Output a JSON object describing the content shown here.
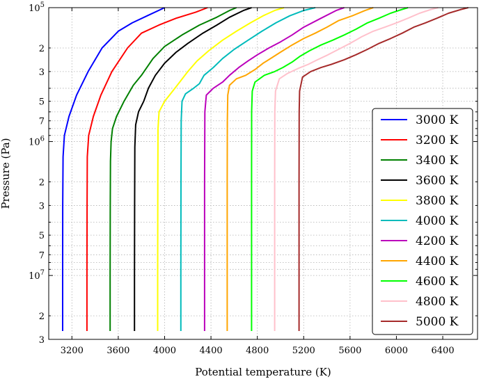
{
  "chart_data": {
    "type": "line",
    "xlabel": "Potential temperature (K)",
    "ylabel": "Pressure (Pa)",
    "xlim": [
      3000,
      6700
    ],
    "ylim": [
      30000000,
      100000
    ],
    "y_scale": "log",
    "y_inverted": true,
    "grid": true,
    "legend_position": "lower-right",
    "x_ticks": [
      3200,
      3600,
      4000,
      4400,
      4800,
      5200,
      5600,
      6000,
      6400
    ],
    "x_tick_labels": [
      "3200",
      "3600",
      "4000",
      "4400",
      "4800",
      "5200",
      "5600",
      "6000",
      "6400"
    ],
    "y_major_ticks": [
      {
        "value": 100000,
        "base": "10",
        "exp": "5"
      },
      {
        "value": 1000000,
        "base": "10",
        "exp": "6"
      },
      {
        "value": 10000000,
        "base": "10",
        "exp": "7"
      }
    ],
    "y_minor_ticks": [
      {
        "value": 200000,
        "label": "2"
      },
      {
        "value": 300000,
        "label": "3"
      },
      {
        "value": 500000,
        "label": "5"
      },
      {
        "value": 700000,
        "label": "7"
      },
      {
        "value": 2000000,
        "label": "2"
      },
      {
        "value": 3000000,
        "label": "3"
      },
      {
        "value": 5000000,
        "label": "5"
      },
      {
        "value": 7000000,
        "label": "7"
      },
      {
        "value": 20000000,
        "label": "2"
      },
      {
        "value": 30000000,
        "label": "3"
      }
    ],
    "y_minor_unlabeled": [
      400000,
      600000,
      800000,
      900000,
      4000000,
      6000000,
      8000000,
      9000000
    ],
    "series": [
      {
        "name": "3000 K",
        "color": "#0000ff",
        "points": [
          [
            3120,
            26000000
          ],
          [
            3120,
            10000000
          ],
          [
            3121,
            3000000
          ],
          [
            3124,
            1300000
          ],
          [
            3135,
            900000
          ],
          [
            3175,
            650000
          ],
          [
            3240,
            450000
          ],
          [
            3340,
            300000
          ],
          [
            3460,
            200000
          ],
          [
            3600,
            150000
          ],
          [
            3720,
            130000
          ],
          [
            3850,
            115000
          ],
          [
            4000,
            100000
          ]
        ]
      },
      {
        "name": "3200 K",
        "color": "#ff0000",
        "points": [
          [
            3330,
            26000000
          ],
          [
            3330,
            10000000
          ],
          [
            3331,
            3000000
          ],
          [
            3333,
            1300000
          ],
          [
            3345,
            900000
          ],
          [
            3385,
            650000
          ],
          [
            3450,
            450000
          ],
          [
            3545,
            300000
          ],
          [
            3680,
            200000
          ],
          [
            3800,
            155000
          ],
          [
            3950,
            135000
          ],
          [
            4100,
            120000
          ],
          [
            4270,
            108000
          ],
          [
            4370,
            100000
          ]
        ]
      },
      {
        "name": "3400 K",
        "color": "#008000",
        "points": [
          [
            3530,
            26000000
          ],
          [
            3530,
            10000000
          ],
          [
            3531,
            3000000
          ],
          [
            3533,
            1400000
          ],
          [
            3538,
            1000000
          ],
          [
            3550,
            800000
          ],
          [
            3585,
            650000
          ],
          [
            3650,
            500000
          ],
          [
            3730,
            380000
          ],
          [
            3800,
            320000
          ],
          [
            3900,
            240000
          ],
          [
            4000,
            195000
          ],
          [
            4150,
            160000
          ],
          [
            4300,
            135000
          ],
          [
            4450,
            118000
          ],
          [
            4560,
            105000
          ],
          [
            4620,
            100000
          ]
        ]
      },
      {
        "name": "3600 K",
        "color": "#000000",
        "points": [
          [
            3740,
            26000000
          ],
          [
            3740,
            10000000
          ],
          [
            3741,
            3000000
          ],
          [
            3743,
            1100000
          ],
          [
            3750,
            750000
          ],
          [
            3775,
            600000
          ],
          [
            3820,
            500000
          ],
          [
            3860,
            400000
          ],
          [
            3920,
            320000
          ],
          [
            4000,
            260000
          ],
          [
            4100,
            215000
          ],
          [
            4200,
            185000
          ],
          [
            4330,
            155000
          ],
          [
            4450,
            135000
          ],
          [
            4560,
            118000
          ],
          [
            4680,
            105000
          ],
          [
            4750,
            100000
          ]
        ]
      },
      {
        "name": "3800 K",
        "color": "#ffff00",
        "points": [
          [
            3940,
            26000000
          ],
          [
            3940,
            10000000
          ],
          [
            3941,
            2000000
          ],
          [
            3943,
            800000
          ],
          [
            3952,
            600000
          ],
          [
            4000,
            500000
          ],
          [
            4060,
            430000
          ],
          [
            4130,
            360000
          ],
          [
            4200,
            300000
          ],
          [
            4280,
            250000
          ],
          [
            4380,
            210000
          ],
          [
            4500,
            175000
          ],
          [
            4620,
            150000
          ],
          [
            4740,
            130000
          ],
          [
            4850,
            115000
          ],
          [
            4950,
            105000
          ],
          [
            5030,
            100000
          ]
        ]
      },
      {
        "name": "4000 K",
        "color": "#00bbbb",
        "points": [
          [
            4140,
            26000000
          ],
          [
            4140,
            10000000
          ],
          [
            4141,
            2000000
          ],
          [
            4143,
            700000
          ],
          [
            4150,
            500000
          ],
          [
            4180,
            440000
          ],
          [
            4250,
            400000
          ],
          [
            4300,
            370000
          ],
          [
            4340,
            320000
          ],
          [
            4420,
            280000
          ],
          [
            4500,
            240000
          ],
          [
            4600,
            205000
          ],
          [
            4720,
            175000
          ],
          [
            4840,
            150000
          ],
          [
            4960,
            130000
          ],
          [
            5080,
            115000
          ],
          [
            5200,
            105000
          ],
          [
            5300,
            100000
          ]
        ]
      },
      {
        "name": "4200 K",
        "color": "#bb00bb",
        "points": [
          [
            4345,
            26000000
          ],
          [
            4345,
            10000000
          ],
          [
            4345,
            2000000
          ],
          [
            4347,
            600000
          ],
          [
            4360,
            450000
          ],
          [
            4420,
            400000
          ],
          [
            4500,
            360000
          ],
          [
            4560,
            320000
          ],
          [
            4640,
            280000
          ],
          [
            4720,
            250000
          ],
          [
            4800,
            225000
          ],
          [
            4900,
            200000
          ],
          [
            5000,
            180000
          ],
          [
            5100,
            160000
          ],
          [
            5200,
            140000
          ],
          [
            5350,
            120000
          ],
          [
            5480,
            105000
          ],
          [
            5550,
            100000
          ]
        ]
      },
      {
        "name": "4400 K",
        "color": "#ffa500",
        "points": [
          [
            4540,
            26000000
          ],
          [
            4540,
            10000000
          ],
          [
            4540,
            2000000
          ],
          [
            4541,
            700000
          ],
          [
            4545,
            450000
          ],
          [
            4560,
            380000
          ],
          [
            4620,
            340000
          ],
          [
            4700,
            320000
          ],
          [
            4780,
            290000
          ],
          [
            4850,
            260000
          ],
          [
            4930,
            235000
          ],
          [
            5000,
            215000
          ],
          [
            5100,
            190000
          ],
          [
            5200,
            170000
          ],
          [
            5300,
            155000
          ],
          [
            5400,
            140000
          ],
          [
            5500,
            125000
          ],
          [
            5620,
            115000
          ],
          [
            5730,
            105000
          ],
          [
            5800,
            100000
          ]
        ]
      },
      {
        "name": "4600 K",
        "color": "#00ff00",
        "points": [
          [
            4750,
            26000000
          ],
          [
            4750,
            10000000
          ],
          [
            4750,
            2000000
          ],
          [
            4751,
            600000
          ],
          [
            4756,
            420000
          ],
          [
            4780,
            360000
          ],
          [
            4860,
            320000
          ],
          [
            4950,
            300000
          ],
          [
            5020,
            280000
          ],
          [
            5100,
            255000
          ],
          [
            5170,
            230000
          ],
          [
            5250,
            210000
          ],
          [
            5350,
            190000
          ],
          [
            5450,
            175000
          ],
          [
            5550,
            160000
          ],
          [
            5650,
            145000
          ],
          [
            5750,
            130000
          ],
          [
            5850,
            120000
          ],
          [
            5950,
            110000
          ],
          [
            6050,
            103000
          ],
          [
            6100,
            100000
          ]
        ]
      },
      {
        "name": "4800 K",
        "color": "#ffc0cb",
        "points": [
          [
            4950,
            26000000
          ],
          [
            4950,
            10000000
          ],
          [
            4950,
            2000000
          ],
          [
            4951,
            600000
          ],
          [
            4957,
            420000
          ],
          [
            4990,
            340000
          ],
          [
            5060,
            310000
          ],
          [
            5150,
            285000
          ],
          [
            5240,
            265000
          ],
          [
            5320,
            245000
          ],
          [
            5410,
            225000
          ],
          [
            5500,
            205000
          ],
          [
            5600,
            185000
          ],
          [
            5700,
            165000
          ],
          [
            5800,
            150000
          ],
          [
            5900,
            140000
          ],
          [
            6000,
            130000
          ],
          [
            6100,
            120000
          ],
          [
            6200,
            110000
          ],
          [
            6300,
            103000
          ],
          [
            6360,
            100000
          ]
        ]
      },
      {
        "name": "5000 K",
        "color": "#a52a2a",
        "points": [
          [
            5160,
            26000000
          ],
          [
            5160,
            10000000
          ],
          [
            5160,
            2000000
          ],
          [
            5161,
            600000
          ],
          [
            5165,
            420000
          ],
          [
            5190,
            330000
          ],
          [
            5260,
            300000
          ],
          [
            5350,
            280000
          ],
          [
            5440,
            265000
          ],
          [
            5550,
            245000
          ],
          [
            5650,
            225000
          ],
          [
            5750,
            205000
          ],
          [
            5850,
            185000
          ],
          [
            5950,
            170000
          ],
          [
            6050,
            155000
          ],
          [
            6150,
            140000
          ],
          [
            6250,
            130000
          ],
          [
            6350,
            120000
          ],
          [
            6450,
            110000
          ],
          [
            6560,
            103000
          ],
          [
            6620,
            100000
          ]
        ]
      }
    ]
  }
}
